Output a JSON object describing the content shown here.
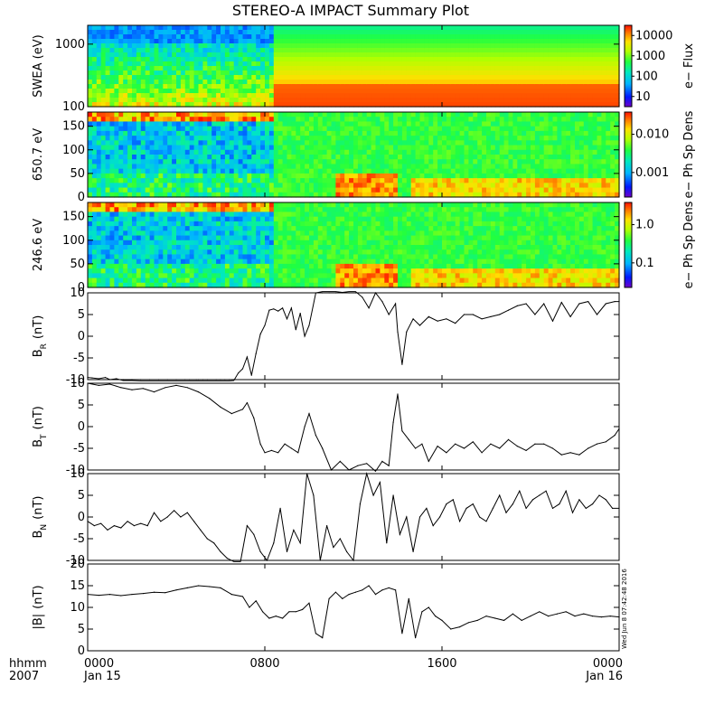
{
  "chart_data": {
    "title": "STEREO-A IMPACT Summary Plot",
    "type": "multi-panel",
    "time_axis": {
      "range_hours": [
        0,
        24
      ],
      "ticks": [
        {
          "hour": 0,
          "label": "0000",
          "sublabel": "Jan 15"
        },
        {
          "hour": 8,
          "label": "0800",
          "sublabel": ""
        },
        {
          "hour": 16,
          "label": "1600",
          "sublabel": ""
        },
        {
          "hour": 24,
          "label": "0000",
          "sublabel": "Jan 16"
        }
      ],
      "row1_label": "hhmm",
      "row2_label": "2007"
    },
    "panels": [
      {
        "type": "heatmap",
        "ylabel": "SWEA (eV)",
        "yscale": "log",
        "ylim": [
          100,
          2000
        ],
        "yticks": [
          "100",
          "1000"
        ],
        "colorbar": {
          "label": "e− Flux",
          "ticks": [
            "10",
            "100",
            "1000",
            "10000"
          ]
        }
      },
      {
        "type": "heatmap",
        "ylabel": "650.7 eV",
        "ylim": [
          0,
          180
        ],
        "yticks": [
          "0",
          "50",
          "100",
          "150"
        ],
        "colorbar": {
          "label": "e− Ph Sp Dens",
          "ticks": [
            "0.001",
            "0.010"
          ]
        }
      },
      {
        "type": "heatmap",
        "ylabel": "246.6 eV",
        "ylim": [
          0,
          180
        ],
        "yticks": [
          "0",
          "50",
          "100",
          "150"
        ],
        "colorbar": {
          "label": "e− Ph Sp Dens",
          "ticks": [
            "0.1",
            "1.0"
          ]
        }
      },
      {
        "type": "line",
        "ylabel": "B",
        "ylabel_sub": "R",
        "ylabel_unit": "(nT)",
        "ylim": [
          -10,
          10
        ],
        "yticks": [
          "-10",
          "-5",
          "0",
          "5",
          "10"
        ],
        "x": [
          0,
          0.2,
          0.5,
          0.8,
          1,
          1.3,
          1.6,
          2,
          2.4,
          2.8,
          3.2,
          3.6,
          4,
          4.4,
          4.6,
          4.9,
          5,
          5.2,
          5.4,
          5.8,
          6,
          6.2,
          6.4,
          6.6,
          6.8,
          7,
          7.2,
          7.4,
          7.6,
          7.8,
          8,
          8.2,
          8.4,
          8.6,
          8.8,
          9,
          9.2,
          9.4,
          9.6,
          9.8,
          10,
          10.3,
          10.6,
          10.9,
          11.2,
          11.5,
          11.8,
          12.1,
          12.4,
          12.7,
          13,
          13.3,
          13.6,
          13.9,
          14,
          14.2,
          14.4,
          14.7,
          15,
          15.4,
          15.8,
          16.2,
          16.6,
          17,
          17.4,
          17.8,
          18.2,
          18.6,
          19,
          19.4,
          19.8,
          20.2,
          20.6,
          21,
          21.4,
          21.8,
          22.2,
          22.6,
          23,
          23.4,
          23.8,
          24
        ],
        "values": [
          -9.5,
          -9.6,
          -9.8,
          -9.5,
          -10,
          -9.8,
          -10.2,
          -10.2,
          -10.5,
          -11,
          -11.5,
          -12,
          -12.5,
          -12.5,
          -12.3,
          -12.4,
          -12.3,
          -12.2,
          -12.3,
          -12.3,
          -12.4,
          -12.2,
          -11.5,
          -10.2,
          -8.5,
          -7.5,
          -4.8,
          -9,
          -4,
          0.5,
          2.5,
          6,
          6.3,
          5.8,
          6.5,
          4,
          6.5,
          1.5,
          5.3,
          0,
          2.5,
          10,
          11,
          10.5,
          10.3,
          10.1,
          10.4,
          10.5,
          9,
          6.5,
          10,
          8,
          5,
          7.5,
          1,
          -6.5,
          1,
          4,
          2.5,
          4.5,
          3.5,
          4,
          3,
          5,
          5,
          4,
          4.5,
          5,
          6,
          7,
          7.5,
          5,
          7.5,
          3.5,
          7.8,
          4.5,
          7.5,
          8,
          5,
          7.5,
          8,
          8
        ]
      },
      {
        "type": "line",
        "ylabel": "B",
        "ylabel_sub": "T",
        "ylabel_unit": "(nT)",
        "ylim": [
          -10,
          10
        ],
        "yticks": [
          "-10",
          "-5",
          "0",
          "5",
          "10"
        ],
        "x": [
          0,
          0.5,
          1,
          1.5,
          2,
          2.5,
          3,
          3.5,
          4,
          4.5,
          5,
          5.5,
          6,
          6.5,
          7,
          7.2,
          7.5,
          7.8,
          8,
          8.3,
          8.6,
          8.9,
          9.2,
          9.5,
          9.8,
          10,
          10.3,
          10.6,
          11,
          11.4,
          11.8,
          12.2,
          12.6,
          13,
          13.3,
          13.6,
          13.8,
          14,
          14.2,
          14.5,
          14.8,
          15.1,
          15.4,
          15.8,
          16.2,
          16.6,
          17,
          17.4,
          17.8,
          18.2,
          18.6,
          19,
          19.4,
          19.8,
          20.2,
          20.6,
          21,
          21.4,
          21.8,
          22.2,
          22.6,
          23,
          23.4,
          23.8,
          24
        ],
        "values": [
          10,
          9.5,
          9.8,
          9,
          8.5,
          8.8,
          8,
          9,
          9.5,
          9,
          8,
          6.5,
          4.5,
          3,
          4,
          5.5,
          2,
          -4,
          -6,
          -5.5,
          -6,
          -4,
          -5,
          -6,
          0,
          3,
          -2,
          -5,
          -10,
          -8,
          -10,
          -9,
          -8.5,
          -10.5,
          -8,
          -9,
          1,
          7.5,
          -1,
          -3,
          -5,
          -4,
          -8,
          -4.5,
          -6,
          -4,
          -5,
          -3.5,
          -6,
          -4,
          -5,
          -3,
          -4.5,
          -5.5,
          -4,
          -4,
          -5,
          -6.5,
          -6,
          -6.5,
          -5,
          -4,
          -3.5,
          -2,
          -0.5
        ]
      },
      {
        "type": "line",
        "ylabel": "B",
        "ylabel_sub": "N",
        "ylabel_unit": "(nT)",
        "ylim": [
          -10,
          10
        ],
        "yticks": [
          "-10",
          "-5",
          "0",
          "5",
          "10"
        ],
        "x": [
          0,
          0.3,
          0.6,
          0.9,
          1.2,
          1.5,
          1.8,
          2.1,
          2.4,
          2.7,
          3,
          3.3,
          3.6,
          3.9,
          4.2,
          4.5,
          4.8,
          5.1,
          5.4,
          5.7,
          6,
          6.3,
          6.6,
          6.9,
          7.2,
          7.5,
          7.8,
          8.1,
          8.4,
          8.7,
          9,
          9.3,
          9.6,
          9.9,
          10.2,
          10.5,
          10.8,
          11.1,
          11.4,
          11.7,
          12,
          12.3,
          12.6,
          12.9,
          13.2,
          13.5,
          13.8,
          14.1,
          14.4,
          14.7,
          15,
          15.3,
          15.6,
          15.9,
          16.2,
          16.5,
          16.8,
          17.1,
          17.4,
          17.7,
          18,
          18.3,
          18.6,
          18.9,
          19.2,
          19.5,
          19.8,
          20.1,
          20.4,
          20.7,
          21,
          21.3,
          21.6,
          21.9,
          22.2,
          22.5,
          22.8,
          23.1,
          23.4,
          23.7,
          24
        ],
        "values": [
          -1,
          -2,
          -1.5,
          -3,
          -2,
          -2.5,
          -1,
          -2,
          -1.5,
          -2,
          1,
          -1,
          0,
          1.5,
          0,
          1,
          -1,
          -3,
          -5,
          -6,
          -8,
          -9.5,
          -11,
          -11,
          -2,
          -4,
          -8,
          -10,
          -6,
          2,
          -8,
          -3,
          -6,
          10,
          5,
          -10,
          -2,
          -7,
          -5,
          -8,
          -10,
          3,
          10,
          5,
          8,
          -6,
          5,
          -4,
          0,
          -8,
          0,
          2,
          -2,
          0,
          3,
          4,
          -1,
          2,
          3,
          0,
          -1,
          2,
          5,
          1,
          3,
          6,
          2,
          4,
          5,
          6,
          2,
          3,
          6,
          1,
          4,
          2,
          3,
          5,
          4,
          2,
          2
        ]
      },
      {
        "type": "line",
        "ylabel": "|B|",
        "ylabel_unit": "(nT)",
        "ylim": [
          0,
          20
        ],
        "yticks": [
          "0",
          "5",
          "10",
          "15",
          "20"
        ],
        "x": [
          0,
          0.5,
          1,
          1.5,
          2,
          2.5,
          3,
          3.5,
          4,
          4.5,
          5,
          5.5,
          6,
          6.5,
          7,
          7.3,
          7.6,
          7.9,
          8.2,
          8.5,
          8.8,
          9.1,
          9.4,
          9.7,
          10,
          10.3,
          10.6,
          10.9,
          11.2,
          11.5,
          11.8,
          12.1,
          12.4,
          12.7,
          13,
          13.3,
          13.6,
          13.9,
          14.2,
          14.5,
          14.8,
          15.1,
          15.4,
          15.7,
          16,
          16.4,
          16.8,
          17.2,
          17.6,
          18,
          18.4,
          18.8,
          19.2,
          19.6,
          20,
          20.4,
          20.8,
          21.2,
          21.6,
          22,
          22.4,
          22.8,
          23.2,
          23.6,
          24
        ],
        "values": [
          13,
          12.8,
          13,
          12.7,
          13,
          13.2,
          13.5,
          13.4,
          14,
          14.5,
          15,
          14.8,
          14.5,
          13,
          12.5,
          10,
          11.5,
          9,
          7.5,
          8,
          7.5,
          9,
          9,
          9.5,
          11,
          4,
          3,
          12,
          13.5,
          12,
          13,
          13.5,
          14,
          15,
          13,
          14,
          14.5,
          14,
          4,
          12,
          3,
          9,
          10,
          8,
          7,
          5,
          5.5,
          6.5,
          7,
          8,
          7.5,
          7,
          8.5,
          7,
          8,
          9,
          8,
          8.5,
          9,
          8,
          8.5,
          8,
          7.8,
          8,
          7.8
        ]
      }
    ],
    "timestamp": "Wed Jun  8 07:42:48 2016"
  }
}
